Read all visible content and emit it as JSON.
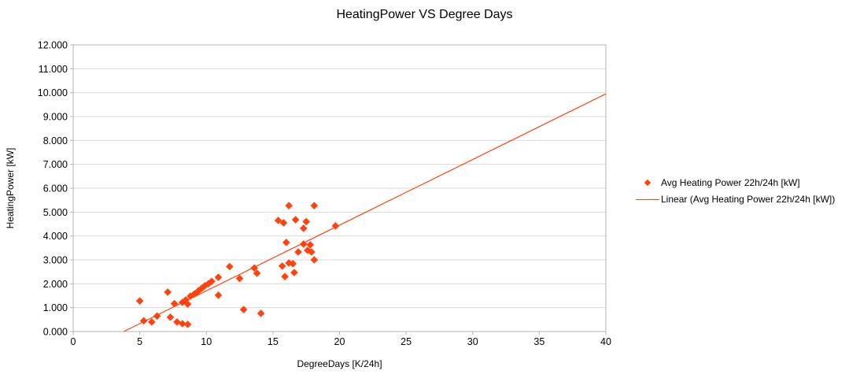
{
  "chart_data": {
    "type": "scatter",
    "title": "HeatingPower VS Degree Days",
    "xlabel": "DegreeDays [K/24h]",
    "ylabel": "HeatingPower [kW]",
    "xlim": [
      0,
      40
    ],
    "ylim": [
      0,
      12
    ],
    "x_ticks": [
      0,
      5,
      10,
      15,
      20,
      25,
      30,
      35,
      40
    ],
    "y_ticks": [
      0,
      1,
      2,
      3,
      4,
      5,
      6,
      7,
      8,
      9,
      10,
      11,
      12
    ],
    "y_tick_decimals": 3,
    "grid": "horizontal",
    "legend_position": "right",
    "colors": {
      "series": "#ff420e",
      "grid": "#d9d9d9",
      "axis": "#b3b3b3",
      "text": "#000000",
      "background": "#ffffff"
    },
    "series": [
      {
        "name": "Avg Heating Power 22h/24h [kW]",
        "kind": "scatter",
        "marker": "diamond",
        "color": "#ff420e",
        "points": [
          [
            5.0,
            1.28
          ],
          [
            5.3,
            0.45
          ],
          [
            5.9,
            0.4
          ],
          [
            6.3,
            0.65
          ],
          [
            7.1,
            1.65
          ],
          [
            7.3,
            0.6
          ],
          [
            7.6,
            1.17
          ],
          [
            7.8,
            0.4
          ],
          [
            8.2,
            0.33
          ],
          [
            8.6,
            0.3
          ],
          [
            8.2,
            1.22
          ],
          [
            8.45,
            1.32
          ],
          [
            8.6,
            1.15
          ],
          [
            8.8,
            1.48
          ],
          [
            9.1,
            1.57
          ],
          [
            9.4,
            1.7
          ],
          [
            9.65,
            1.81
          ],
          [
            9.9,
            1.92
          ],
          [
            10.15,
            2.0
          ],
          [
            10.4,
            2.1
          ],
          [
            10.9,
            2.27
          ],
          [
            10.9,
            1.52
          ],
          [
            11.75,
            2.72
          ],
          [
            12.5,
            2.22
          ],
          [
            12.8,
            0.92
          ],
          [
            13.6,
            2.66
          ],
          [
            13.8,
            2.44
          ],
          [
            14.1,
            0.76
          ],
          [
            15.4,
            4.65
          ],
          [
            15.7,
            2.74
          ],
          [
            15.8,
            4.55
          ],
          [
            15.9,
            2.3
          ],
          [
            16.0,
            3.73
          ],
          [
            16.2,
            5.27
          ],
          [
            16.2,
            2.87
          ],
          [
            16.5,
            2.84
          ],
          [
            16.6,
            2.47
          ],
          [
            16.7,
            4.68
          ],
          [
            16.9,
            3.33
          ],
          [
            17.3,
            3.66
          ],
          [
            17.3,
            4.32
          ],
          [
            17.5,
            4.6
          ],
          [
            17.6,
            3.4
          ],
          [
            17.8,
            3.63
          ],
          [
            17.9,
            3.33
          ],
          [
            18.1,
            3.0
          ],
          [
            18.1,
            5.27
          ],
          [
            19.7,
            4.42
          ]
        ]
      },
      {
        "name": "Linear (Avg Heating Power 22h/24h [kW])",
        "kind": "line",
        "color": "#ff420e",
        "x1": 3.8,
        "y1": 0.0,
        "x2": 40.0,
        "y2": 9.95
      }
    ]
  }
}
